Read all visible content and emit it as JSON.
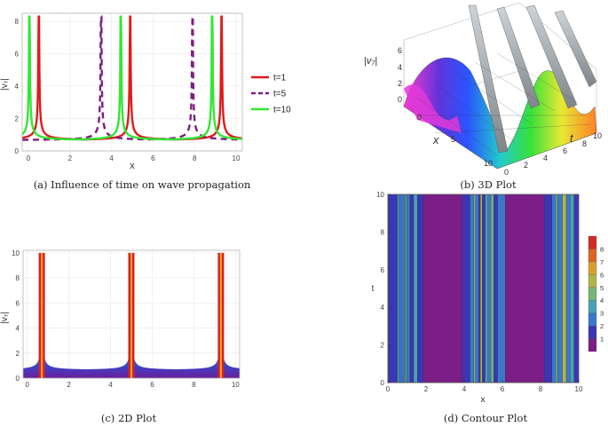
{
  "captions": {
    "a": "(a) Influence of time on wave propagation",
    "b": "(b) 3D Plot",
    "c": "(c) 2D Plot",
    "d": "(d) Contour Plot"
  },
  "chart_data": [
    {
      "type": "line",
      "panel": "a",
      "xlabel": "x",
      "ylabel": "|v₇|",
      "xlim": [
        -0.3,
        10.3
      ],
      "ylim": [
        0,
        8.5
      ],
      "xticks": [
        0,
        2,
        4,
        6,
        8,
        10
      ],
      "yticks": [
        0,
        2,
        4,
        6,
        8
      ],
      "legend_position": "right",
      "model": {
        "min_value": 0.65,
        "amplitude_factor": 0.13,
        "period": 4.4,
        "cap": 8.3
      },
      "series": [
        {
          "name": "t=1",
          "color": "#dd1c1c",
          "dash": "solid",
          "singularities": [
            0.5,
            4.9,
            9.3
          ]
        },
        {
          "name": "t=5",
          "color": "#7e1e80",
          "dash": "dashed",
          "singularities": [
            3.5,
            7.9
          ]
        },
        {
          "name": "t=10",
          "color": "#33e633",
          "dash": "solid",
          "singularities": [
            0.05,
            4.45,
            8.85
          ]
        }
      ]
    },
    {
      "type": "surface",
      "panel": "b",
      "xlabel": "x",
      "ylabel": "t",
      "zlabel": "|v₇|",
      "xticks": [
        0,
        5,
        10
      ],
      "yticks": [
        0,
        2,
        4,
        6,
        8,
        10
      ],
      "zticks": [
        0,
        2,
        4,
        6
      ]
    },
    {
      "type": "area",
      "panel": "c",
      "xlabel": "",
      "ylabel": "|v₇|",
      "xlim": [
        -0.2,
        10.2
      ],
      "ylim": [
        0,
        10.2
      ],
      "xticks": [
        0,
        2,
        4,
        6,
        8,
        10
      ],
      "yticks": [
        0,
        2,
        4,
        6,
        8,
        10
      ],
      "cap": 10,
      "peaks": [
        0.7,
        5.0,
        9.3
      ],
      "model": {
        "min_value": 0.65,
        "amplitude_factor": 0.13
      }
    },
    {
      "type": "heatmap",
      "panel": "d",
      "xlabel": "x",
      "ylabel": "t",
      "xlim": [
        0,
        10
      ],
      "ylim": [
        0,
        10
      ],
      "xticks": [
        0,
        2,
        4,
        6,
        8,
        10
      ],
      "yticks": [
        0,
        2,
        4,
        6,
        8,
        10
      ],
      "legend_position": "right",
      "colorbar": {
        "levels": [
          1,
          2,
          3,
          4,
          5,
          6,
          7,
          8
        ],
        "colors": [
          "#7b1e86",
          "#3b36b4",
          "#3c78c8",
          "#4aa1b6",
          "#79b27a",
          "#b0b44a",
          "#d6a12c",
          "#dc6424",
          "#cf2d27"
        ]
      },
      "bands": [
        {
          "x0": 0,
          "x1": 0.5,
          "color": "#3b36b4"
        },
        {
          "x0": 0.5,
          "x1": 0.6,
          "color": "#4aa1b6"
        },
        {
          "x0": 0.6,
          "x1": 0.9,
          "color": "#3c6fc4"
        },
        {
          "x0": 0.9,
          "x1": 1.0,
          "color": "#5da870"
        },
        {
          "x0": 1.0,
          "x1": 1.15,
          "color": "#3c78c8"
        },
        {
          "x0": 1.15,
          "x1": 1.35,
          "color": "#3b36b4"
        },
        {
          "x0": 1.35,
          "x1": 1.55,
          "color": "#4aa1b6"
        },
        {
          "x0": 1.55,
          "x1": 1.85,
          "color": "#3b36b4"
        },
        {
          "x0": 1.85,
          "x1": 3.9,
          "color": "#7b1e86"
        },
        {
          "x0": 3.9,
          "x1": 4.3,
          "color": "#3b36b4"
        },
        {
          "x0": 4.3,
          "x1": 4.5,
          "color": "#3c78c8"
        },
        {
          "x0": 4.5,
          "x1": 4.6,
          "color": "#79b27a"
        },
        {
          "x0": 4.6,
          "x1": 4.75,
          "color": "#3c78c8"
        },
        {
          "x0": 4.75,
          "x1": 4.85,
          "color": "#3b36b4"
        },
        {
          "x0": 4.85,
          "x1": 4.95,
          "color": "#b0b44a"
        },
        {
          "x0": 4.95,
          "x1": 5.1,
          "color": "#3b36b4"
        },
        {
          "x0": 5.1,
          "x1": 5.25,
          "color": "#4aa1b6"
        },
        {
          "x0": 5.25,
          "x1": 5.4,
          "color": "#3c78c8"
        },
        {
          "x0": 5.4,
          "x1": 5.55,
          "color": "#79b27a"
        },
        {
          "x0": 5.55,
          "x1": 5.75,
          "color": "#3b36b4"
        },
        {
          "x0": 5.75,
          "x1": 6.15,
          "color": "#3c78c8"
        },
        {
          "x0": 6.15,
          "x1": 8.2,
          "color": "#7b1e86"
        },
        {
          "x0": 8.2,
          "x1": 8.6,
          "color": "#3b36b4"
        },
        {
          "x0": 8.6,
          "x1": 8.8,
          "color": "#3c78c8"
        },
        {
          "x0": 8.8,
          "x1": 8.9,
          "color": "#79b27a"
        },
        {
          "x0": 8.9,
          "x1": 9.15,
          "color": "#3c78c8"
        },
        {
          "x0": 9.15,
          "x1": 9.35,
          "color": "#b0b44a"
        },
        {
          "x0": 9.35,
          "x1": 9.55,
          "color": "#3c78c8"
        },
        {
          "x0": 9.55,
          "x1": 9.75,
          "color": "#4aa1b6"
        },
        {
          "x0": 9.75,
          "x1": 10,
          "color": "#3b36b4"
        }
      ]
    }
  ]
}
